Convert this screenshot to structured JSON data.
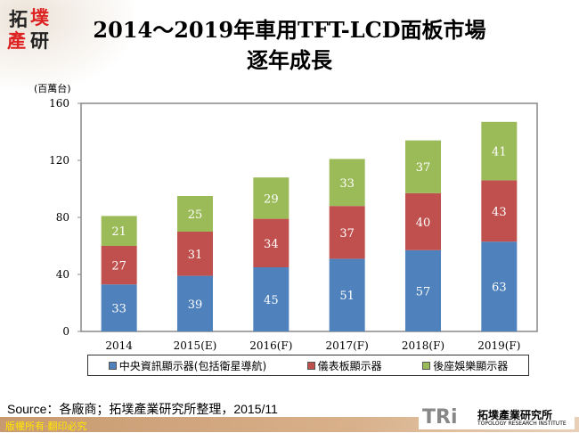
{
  "logo": {
    "chars": [
      "拓",
      "墣",
      "產",
      "研"
    ]
  },
  "title": {
    "line1": "2014～2019年車用TFT-LCD面板市場",
    "line2": "逐年成長"
  },
  "chart_data": {
    "type": "bar",
    "stacked": true,
    "ylabel": "(百萬台)",
    "ylim": [
      0,
      160
    ],
    "yticks": [
      0,
      40,
      80,
      120,
      160
    ],
    "categories": [
      "2014",
      "2015(E)",
      "2016(F)",
      "2017(F)",
      "2018(F)",
      "2019(F)"
    ],
    "series": [
      {
        "name": "中央資訊顯示器(包括衛星導航)",
        "color": "#4F81BD",
        "values": [
          33,
          39,
          45,
          51,
          57,
          63
        ]
      },
      {
        "name": "儀表板顯示器",
        "color": "#C0504D",
        "values": [
          27,
          31,
          34,
          37,
          40,
          43
        ]
      },
      {
        "name": "後座娛樂顯示器",
        "color": "#9BBB59",
        "values": [
          21,
          25,
          29,
          33,
          37,
          41
        ]
      }
    ],
    "grid": false,
    "legend": "bottom"
  },
  "source": "Source：各廠商；拓墣產業研究所整理，2015/11",
  "footer": {
    "copyright": "版權所有‧翻印必究",
    "tri": "TRi",
    "tri_cn": "拓墣產業研究所",
    "tri_en": "TOPOLOGY RESEARCH INSTITUTE"
  }
}
